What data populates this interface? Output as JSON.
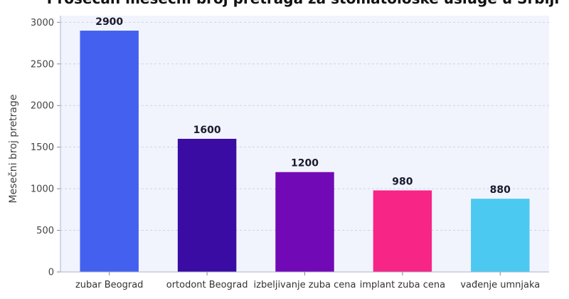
{
  "chart_data": {
    "type": "bar",
    "title": "Prosečan mesečni broj pretraga za stomatološke usluge u Srbiji",
    "ylabel": "Mesečni broj pretrage",
    "xlabel": "",
    "categories": [
      "zubar Beograd",
      "ortodont Beograd",
      "izbeljivanje zuba cena",
      "implant zuba cena",
      "vađenje umnjaka"
    ],
    "values": [
      2900,
      1600,
      1200,
      980,
      880
    ],
    "data_labels": [
      "2900",
      "1600",
      "1200",
      "980",
      "880"
    ],
    "yticks": [
      "0",
      "500",
      "1000",
      "1500",
      "2000",
      "2500",
      "3000"
    ],
    "ytick_values": [
      0,
      500,
      1000,
      1500,
      2000,
      2500,
      3000
    ],
    "ylim": [
      0,
      3080
    ],
    "grid": true,
    "colors": [
      "#4361ee",
      "#3a0ca3",
      "#7209b7",
      "#f72585",
      "#4cc9f0"
    ],
    "plot_background": "#f1f4fc"
  }
}
